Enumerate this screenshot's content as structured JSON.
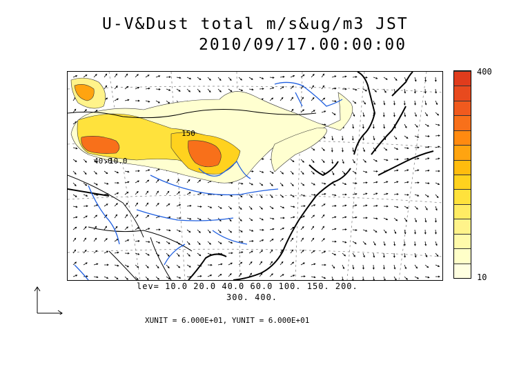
{
  "title_line1": "U-V&Dust total m/s&ug/m3 JST",
  "title_line2": "2010/09/17.00:00:00",
  "colorbar": {
    "max_label": "400",
    "min_label": "10",
    "colors": [
      "#ffffe0",
      "#ffffc8",
      "#fffaaa",
      "#fff38a",
      "#ffec64",
      "#ffe23c",
      "#ffd21e",
      "#ffbc0e",
      "#ffa410",
      "#ff8a10",
      "#f8701a",
      "#f05a1e",
      "#e84a1e",
      "#e03c1c"
    ]
  },
  "contour_levels_line1": "lev= 10.0 20.0 40.0 60.0 100. 150. 200.",
  "contour_levels_line2": "300. 400.",
  "contour_labels": [
    "150",
    "40.0",
    "10.0"
  ],
  "units_text": "XUNIT = 6.000E+01, YUNIT = 6.000E+01",
  "colors": {
    "coast": "#000000",
    "rivers": "#1f5fe0",
    "grid": "#555555"
  }
}
